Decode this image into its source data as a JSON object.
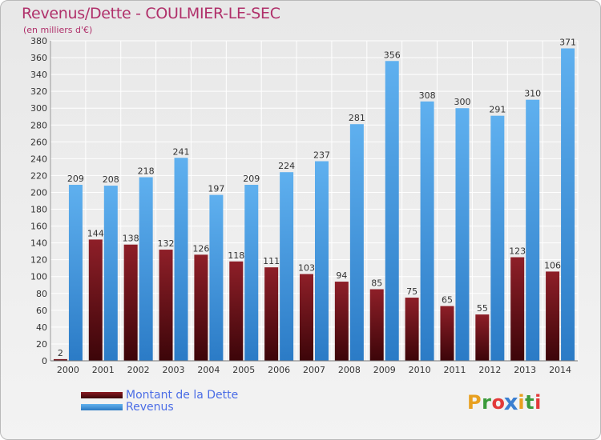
{
  "header": {
    "title": "Revenus/Dette - COULMIER-LE-SEC",
    "subtitle": "(en milliers d'€)"
  },
  "chart_data": {
    "type": "bar",
    "title": "Revenus/Dette - COULMIER-LE-SEC",
    "subtitle": "(en milliers d'€)",
    "categories": [
      "2000",
      "2001",
      "2002",
      "2003",
      "2004",
      "2005",
      "2006",
      "2007",
      "2008",
      "2009",
      "2010",
      "2011",
      "2012",
      "2013",
      "2014"
    ],
    "series": [
      {
        "name": "Montant de la Dette",
        "color": "#6e0f18",
        "values": [
          2,
          144,
          138,
          132,
          126,
          118,
          111,
          103,
          94,
          85,
          75,
          65,
          55,
          123,
          106
        ]
      },
      {
        "name": "Revenus",
        "color": "#4a9fe0",
        "values": [
          209,
          208,
          218,
          241,
          197,
          209,
          224,
          237,
          281,
          356,
          308,
          300,
          291,
          310,
          371
        ]
      }
    ],
    "ylim": [
      0,
      380
    ],
    "ytick_step": 20,
    "grid": true,
    "legend_position": "bottom-left"
  },
  "legend": {
    "items": [
      {
        "label": "Montant de la Dette",
        "color": "#6e0f18"
      },
      {
        "label": "Revenus",
        "color": "#4a9fe0"
      }
    ]
  },
  "logo": {
    "letters": [
      "P",
      "r",
      "o",
      "x",
      "i",
      "t",
      "i"
    ],
    "colors": [
      "#e8a020",
      "#3b9b3b",
      "#e23a3a",
      "#3b7fd1",
      "#e8a020",
      "#3b9b3b",
      "#e23a3a"
    ]
  }
}
